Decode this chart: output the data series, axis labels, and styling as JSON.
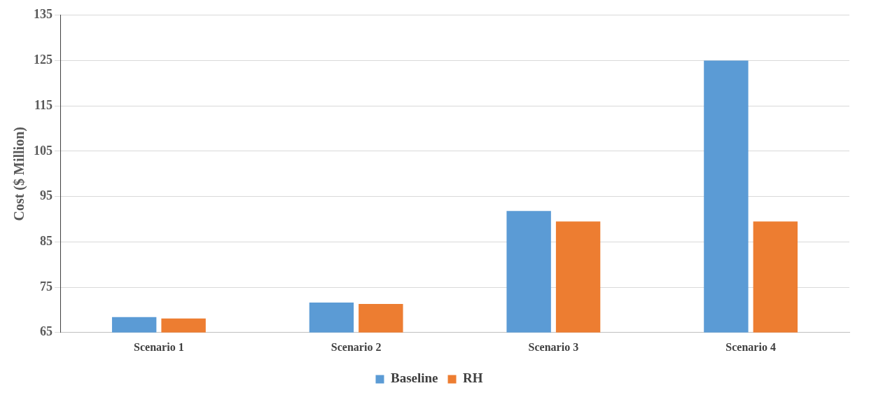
{
  "chart_data": {
    "type": "bar",
    "ylabel": "Cost ($ Million)",
    "categories": [
      "Scenario 1",
      "Scenario 2",
      "Scenario 3",
      "Scenario 4"
    ],
    "series": [
      {
        "name": "Baseline",
        "color": "#5b9bd5",
        "values": [
          68.4,
          71.6,
          91.8,
          125
        ]
      },
      {
        "name": "RH",
        "color": "#ed7d31",
        "values": [
          68.1,
          71.3,
          89.5,
          89.5
        ]
      }
    ],
    "ylim": [
      65,
      135
    ],
    "yticks": [
      65,
      75,
      85,
      95,
      105,
      115,
      125,
      135
    ],
    "grid": "y",
    "legend": "bottom"
  }
}
